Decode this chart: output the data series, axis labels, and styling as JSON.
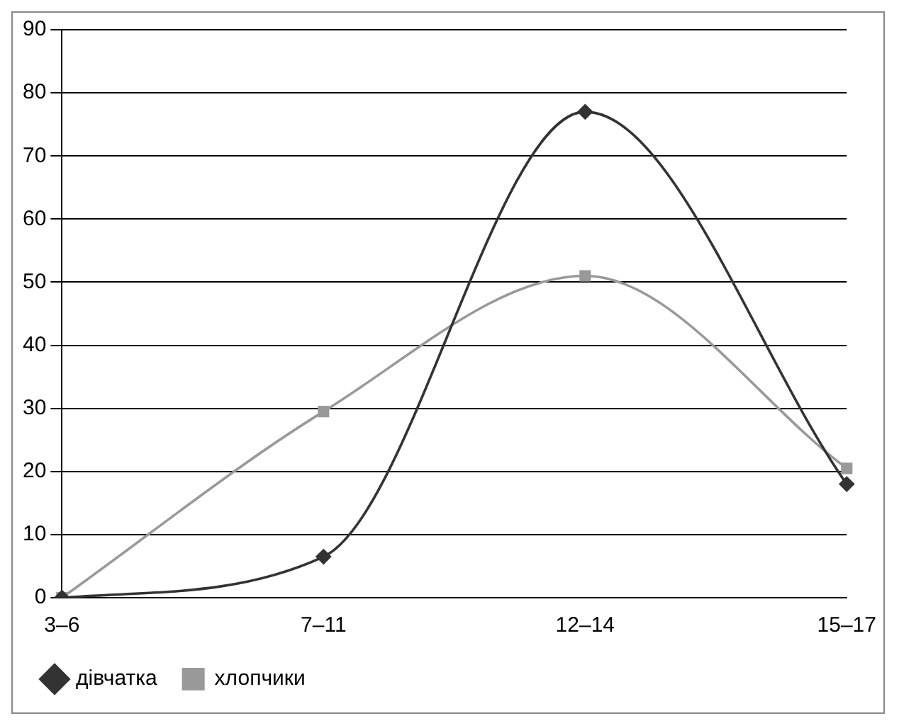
{
  "chart_data": {
    "type": "line",
    "categories": [
      "3–6",
      "7–11",
      "12–14",
      "15–17"
    ],
    "series": [
      {
        "name": "дівчатка",
        "color": "#333333",
        "values": [
          0,
          6.5,
          77,
          18
        ],
        "marker": "diamond"
      },
      {
        "name": "хлопчики",
        "color": "#999999",
        "values": [
          0,
          29.5,
          51,
          20.5
        ],
        "marker": "square"
      }
    ],
    "ylim": [
      0,
      90
    ],
    "yticks": [
      0,
      10,
      20,
      30,
      40,
      50,
      60,
      70,
      80,
      90
    ],
    "grid": "y",
    "legend": "bottom left"
  }
}
